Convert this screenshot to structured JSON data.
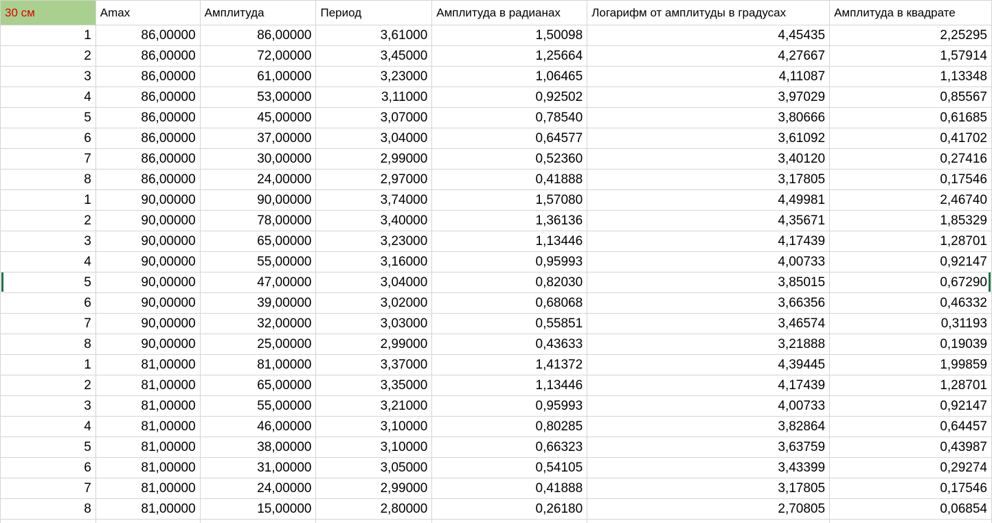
{
  "header": [
    "30 см",
    "Amax",
    "Амплитуда",
    "Период",
    "Амплитуда в радианах",
    "Логарифм от амплитуды в градусах",
    "Амплитуда в квадрате"
  ],
  "rows": [
    [
      "1",
      "86,00000",
      "86,00000",
      "3,61000",
      "1,50098",
      "4,45435",
      "2,25295"
    ],
    [
      "2",
      "86,00000",
      "72,00000",
      "3,45000",
      "1,25664",
      "4,27667",
      "1,57914"
    ],
    [
      "3",
      "86,00000",
      "61,00000",
      "3,23000",
      "1,06465",
      "4,11087",
      "1,13348"
    ],
    [
      "4",
      "86,00000",
      "53,00000",
      "3,11000",
      "0,92502",
      "3,97029",
      "0,85567"
    ],
    [
      "5",
      "86,00000",
      "45,00000",
      "3,07000",
      "0,78540",
      "3,80666",
      "0,61685"
    ],
    [
      "6",
      "86,00000",
      "37,00000",
      "3,04000",
      "0,64577",
      "3,61092",
      "0,41702"
    ],
    [
      "7",
      "86,00000",
      "30,00000",
      "2,99000",
      "0,52360",
      "3,40120",
      "0,27416"
    ],
    [
      "8",
      "86,00000",
      "24,00000",
      "2,97000",
      "0,41888",
      "3,17805",
      "0,17546"
    ],
    [
      "1",
      "90,00000",
      "90,00000",
      "3,74000",
      "1,57080",
      "4,49981",
      "2,46740"
    ],
    [
      "2",
      "90,00000",
      "78,00000",
      "3,40000",
      "1,36136",
      "4,35671",
      "1,85329"
    ],
    [
      "3",
      "90,00000",
      "65,00000",
      "3,23000",
      "1,13446",
      "4,17439",
      "1,28701"
    ],
    [
      "4",
      "90,00000",
      "55,00000",
      "3,16000",
      "0,95993",
      "4,00733",
      "0,92147"
    ],
    [
      "5",
      "90,00000",
      "47,00000",
      "3,04000",
      "0,82030",
      "3,85015",
      "0,67290"
    ],
    [
      "6",
      "90,00000",
      "39,00000",
      "3,02000",
      "0,68068",
      "3,66356",
      "0,46332"
    ],
    [
      "7",
      "90,00000",
      "32,00000",
      "3,03000",
      "0,55851",
      "3,46574",
      "0,31193"
    ],
    [
      "8",
      "90,00000",
      "25,00000",
      "2,99000",
      "0,43633",
      "3,21888",
      "0,19039"
    ],
    [
      "1",
      "81,00000",
      "81,00000",
      "3,37000",
      "1,41372",
      "4,39445",
      "1,99859"
    ],
    [
      "2",
      "81,00000",
      "65,00000",
      "3,35000",
      "1,13446",
      "4,17439",
      "1,28701"
    ],
    [
      "3",
      "81,00000",
      "55,00000",
      "3,21000",
      "0,95993",
      "4,00733",
      "0,92147"
    ],
    [
      "4",
      "81,00000",
      "46,00000",
      "3,10000",
      "0,80285",
      "3,82864",
      "0,64457"
    ],
    [
      "5",
      "81,00000",
      "38,00000",
      "3,10000",
      "0,66323",
      "3,63759",
      "0,43987"
    ],
    [
      "6",
      "81,00000",
      "31,00000",
      "3,05000",
      "0,54105",
      "3,43399",
      "0,29274"
    ],
    [
      "7",
      "81,00000",
      "24,00000",
      "2,99000",
      "0,41888",
      "3,17805",
      "0,17546"
    ],
    [
      "8",
      "81,00000",
      "15,00000",
      "2,80000",
      "0,26180",
      "2,70805",
      "0,06854"
    ],
    [
      "",
      "",
      "",
      "",
      "",
      "",
      ""
    ]
  ],
  "colors": {
    "corner_bg": "#a9d08e",
    "corner_text": "#e00000",
    "grid": "#d4d4d4",
    "selection": "#1e7145"
  }
}
